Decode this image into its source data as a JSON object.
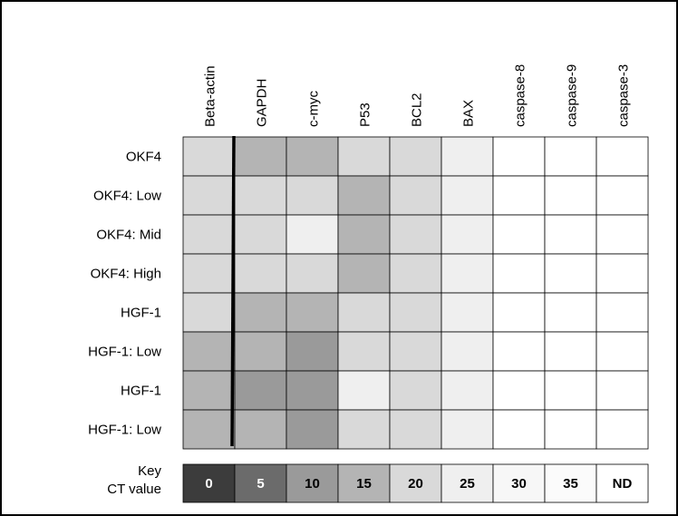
{
  "chart_data": {
    "type": "heatmap",
    "title": "",
    "columns": [
      "Beta-actin",
      "GAPDH",
      "c-myc",
      "P53",
      "BCL2",
      "BAX",
      "caspase-8",
      "caspase-9",
      "caspase-3"
    ],
    "rows": [
      "OKF4",
      "OKF4: Low",
      "OKF4: Mid",
      "OKF4: High",
      "HGF-1",
      "HGF-1: Low",
      "HGF-1",
      "HGF-1: Low"
    ],
    "values": [
      [
        20,
        15,
        15,
        20,
        20,
        25,
        "ND",
        "ND",
        "ND"
      ],
      [
        20,
        20,
        20,
        15,
        20,
        25,
        "ND",
        "ND",
        "ND"
      ],
      [
        20,
        20,
        25,
        15,
        20,
        25,
        "ND",
        "ND",
        "ND"
      ],
      [
        20,
        20,
        20,
        15,
        20,
        25,
        "ND",
        "ND",
        "ND"
      ],
      [
        20,
        15,
        15,
        20,
        20,
        25,
        "ND",
        "ND",
        "ND"
      ],
      [
        15,
        15,
        10,
        20,
        20,
        25,
        "ND",
        "ND",
        "ND"
      ],
      [
        15,
        10,
        10,
        25,
        20,
        25,
        "ND",
        "ND",
        "ND"
      ],
      [
        15,
        15,
        10,
        20,
        20,
        25,
        "ND",
        "ND",
        "ND"
      ]
    ],
    "key": {
      "label_line1": "Key",
      "label_line2": "CT value",
      "levels": [
        {
          "label": "0",
          "value": 0,
          "color": "#3c3c3c",
          "text_color": "#ffffff"
        },
        {
          "label": "5",
          "value": 5,
          "color": "#6b6b6b",
          "text_color": "#ffffff"
        },
        {
          "label": "10",
          "value": 10,
          "color": "#9a9a9a",
          "text_color": "#000000"
        },
        {
          "label": "15",
          "value": 15,
          "color": "#b4b4b4",
          "text_color": "#000000"
        },
        {
          "label": "20",
          "value": 20,
          "color": "#d9d9d9",
          "text_color": "#000000"
        },
        {
          "label": "25",
          "value": 25,
          "color": "#efefef",
          "text_color": "#000000"
        },
        {
          "label": "30",
          "value": 30,
          "color": "#f7f7f7",
          "text_color": "#000000"
        },
        {
          "label": "35",
          "value": 35,
          "color": "#fbfbfb",
          "text_color": "#000000"
        },
        {
          "label": "ND",
          "value": "ND",
          "color": "#ffffff",
          "text_color": "#000000"
        }
      ]
    },
    "grid": true,
    "legend": "bottom"
  }
}
